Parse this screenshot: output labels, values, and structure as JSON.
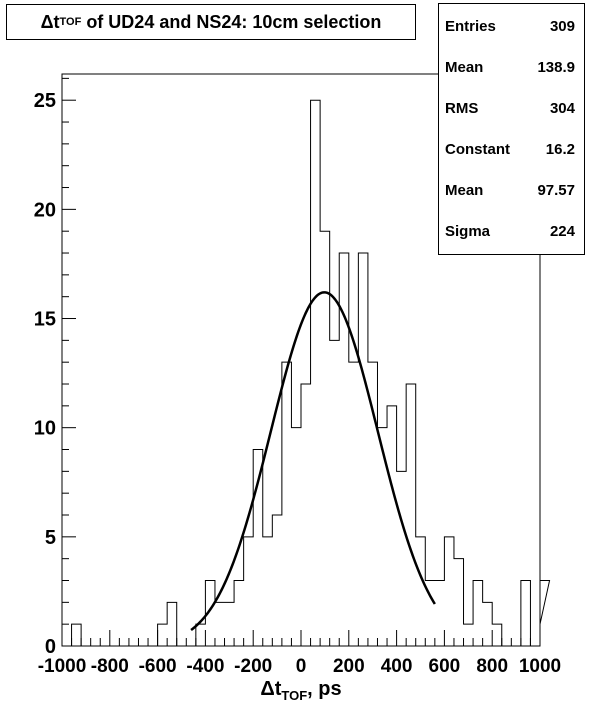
{
  "chart_data": {
    "type": "histogram",
    "title_prefix": "Δt",
    "title_sub": "TOF",
    "title_suffix": " of UD24 and NS24: 10cm selection",
    "xlabel_prefix": "Δt",
    "xlabel_sub": "TOF",
    "xlabel_suffix": ", ps",
    "xlim": [
      -1000,
      1000
    ],
    "ylim": [
      0,
      26.2
    ],
    "xticks": [
      -1000,
      -800,
      -600,
      -400,
      -200,
      0,
      200,
      400,
      600,
      800,
      1000
    ],
    "xtick_labels": [
      "-1000",
      "-800",
      "-600",
      "-400",
      "-200",
      "0",
      "200",
      "400",
      "600",
      "800",
      "1000"
    ],
    "yticks": [
      0,
      5,
      10,
      15,
      20,
      25
    ],
    "ytick_labels": [
      "0",
      "5",
      "10",
      "15",
      "20",
      "25"
    ],
    "bin_width": 40,
    "bin_start": -1000,
    "counts": [
      0,
      1,
      0,
      0,
      0,
      0,
      0,
      0,
      0,
      0,
      1,
      2,
      0,
      0,
      1,
      3,
      2,
      2,
      3,
      5,
      9,
      5,
      6,
      13,
      10,
      12,
      25,
      19,
      14,
      18,
      13,
      18,
      13,
      10,
      11,
      8,
      12,
      5,
      3,
      3,
      5,
      4,
      1,
      3,
      2,
      1,
      0,
      0,
      3,
      0,
      1,
      3
    ],
    "fit": {
      "function": "gaus",
      "constant": 16.2,
      "mean": 97.57,
      "sigma": 224,
      "range": [
        -460,
        560
      ]
    },
    "stats": [
      {
        "name": "Entries",
        "value": "309"
      },
      {
        "name": "Mean",
        "value": "138.9"
      },
      {
        "name": "RMS",
        "value": "304"
      },
      {
        "name": "Constant",
        "value": "16.2"
      },
      {
        "name": "Mean",
        "value": "97.57"
      },
      {
        "name": "Sigma",
        "value": "224"
      }
    ]
  }
}
